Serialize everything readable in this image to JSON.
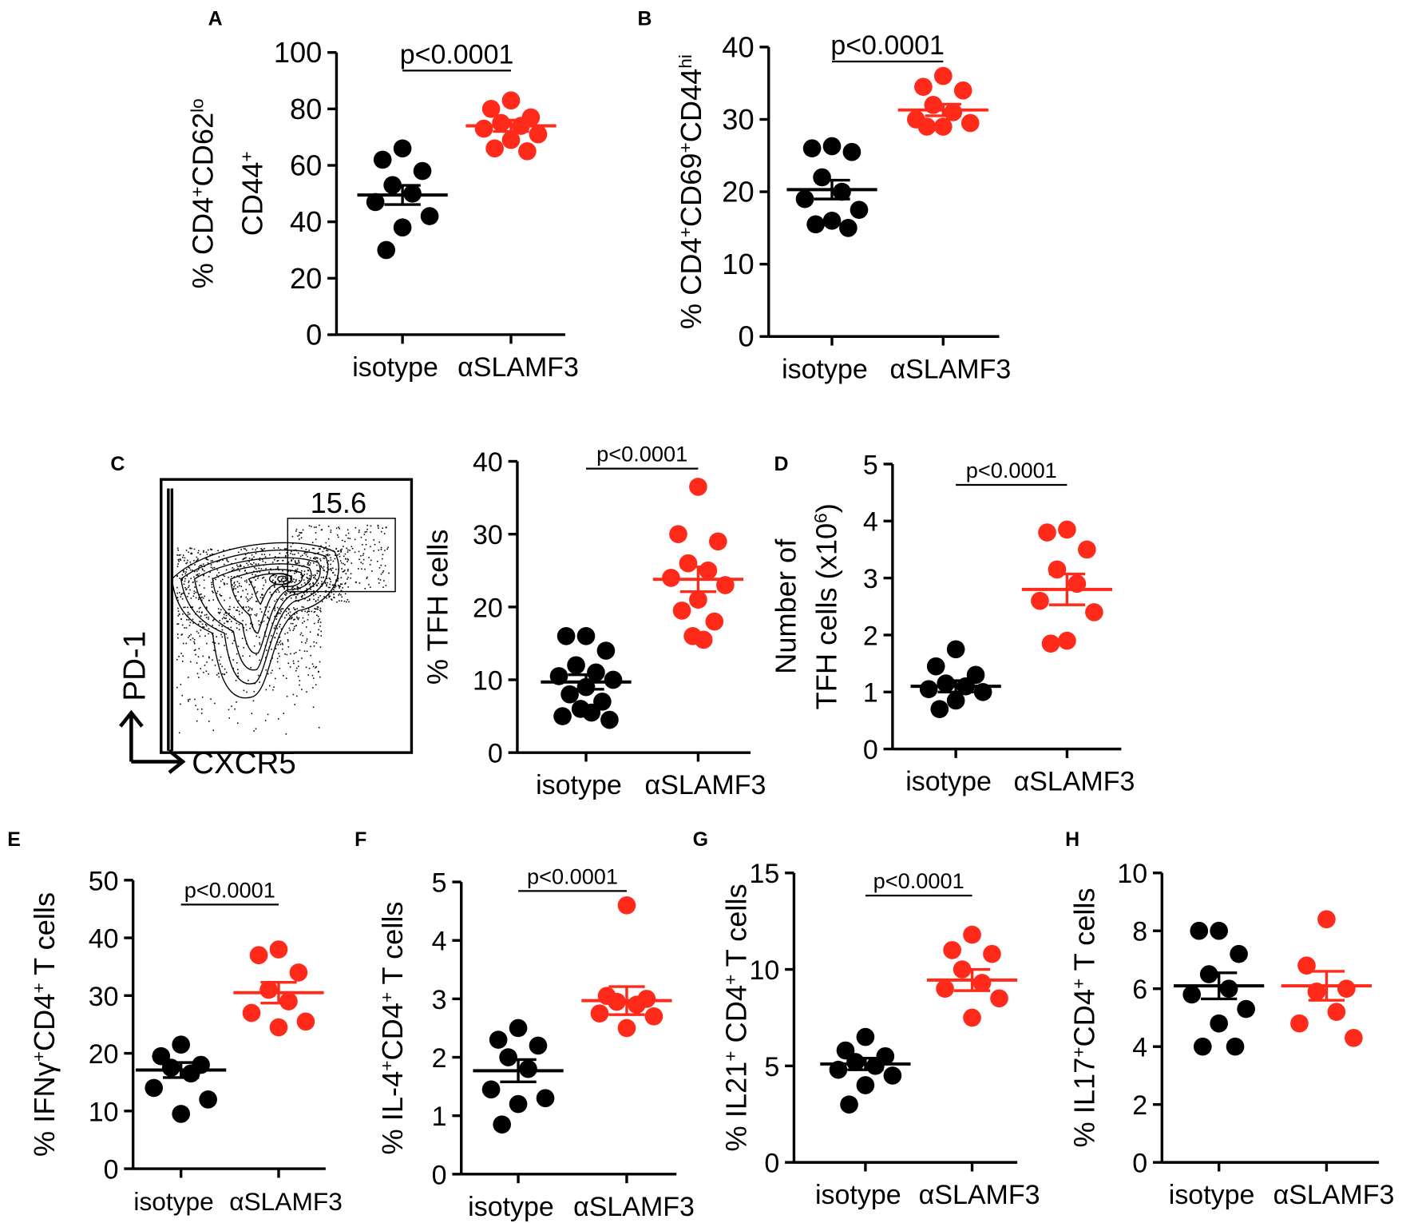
{
  "colors": {
    "isotype": "#000000",
    "treated": "#ff2a1a"
  },
  "flow_plot": {
    "panel_letter": "C",
    "gate_value": "15.6",
    "y_marker": "PD-1",
    "x_marker": "CXCR5"
  },
  "chart_data": [
    {
      "id": "A",
      "type": "scatter",
      "panel_letter": "A",
      "categories": [
        "isotype",
        "αSLAMF3"
      ],
      "ylabel_lines": [
        [
          [
            "% CD4",
            0
          ],
          [
            "+",
            1
          ],
          [
            "CD62",
            0
          ],
          [
            "lo",
            1
          ]
        ],
        [
          [
            "CD44",
            0
          ],
          [
            "+",
            1
          ]
        ]
      ],
      "ylim": [
        0,
        100
      ],
      "yticks": [
        "0",
        "20",
        "40",
        "60",
        "80",
        "100"
      ],
      "annotation": "p<0.0001",
      "series": [
        {
          "name": "isotype",
          "values": [
            66,
            62,
            58,
            53,
            50,
            47,
            42,
            38,
            30
          ],
          "mean": 49.5,
          "sem": 3.4
        },
        {
          "name": "αSLAMF3",
          "values": [
            83,
            80,
            77,
            75,
            74,
            73,
            71,
            69,
            66,
            65
          ],
          "mean": 74,
          "sem": 2
        }
      ]
    },
    {
      "id": "B",
      "type": "scatter",
      "panel_letter": "B",
      "categories": [
        "isotype",
        "αSLAMF3"
      ],
      "ylabel_lines": [
        [
          [
            "% CD4",
            0
          ],
          [
            "+",
            1
          ],
          [
            "CD69",
            0
          ],
          [
            "+",
            1
          ],
          [
            "CD44",
            0
          ],
          [
            "hi",
            1
          ]
        ]
      ],
      "ylim": [
        0,
        40
      ],
      "yticks": [
        "0",
        "10",
        "20",
        "30",
        "40"
      ],
      "annotation": "p<0.0001",
      "series": [
        {
          "name": "isotype",
          "values": [
            26.3,
            26,
            25.5,
            22,
            20,
            19,
            17.5,
            16,
            15.5,
            15
          ],
          "mean": 20.3,
          "sem": 1.3
        },
        {
          "name": "αSLAMF3",
          "values": [
            36,
            34.5,
            34,
            32,
            31,
            30,
            29.5,
            29,
            29
          ],
          "mean": 31.3,
          "sem": 0.8
        }
      ]
    },
    {
      "id": "C",
      "type": "scatter",
      "panel_letter": "",
      "categories": [
        "isotype",
        "αSLAMF3"
      ],
      "ylabel_lines": [
        [
          [
            "% TFH cells",
            0
          ]
        ]
      ],
      "ylim": [
        0,
        40
      ],
      "yticks": [
        "0",
        "10",
        "20",
        "30",
        "40"
      ],
      "annotation": "p<0.0001",
      "series": [
        {
          "name": "isotype",
          "values": [
            16,
            16,
            14,
            12,
            11,
            10.5,
            10,
            9,
            8,
            7,
            6,
            5.5,
            5,
            4.5
          ],
          "mean": 9.7,
          "sem": 1
        },
        {
          "name": "αSLAMF3",
          "values": [
            36.5,
            30,
            29,
            26,
            25,
            24,
            23,
            21,
            19.5,
            18,
            16,
            15.5
          ],
          "mean": 23.8,
          "sem": 1.7
        }
      ]
    },
    {
      "id": "D",
      "type": "scatter",
      "panel_letter": "D",
      "categories": [
        "isotype",
        "αSLAMF3"
      ],
      "ylabel_lines": [
        [
          [
            "Number of",
            0
          ]
        ],
        [
          [
            "TFH cells (x10",
            0
          ],
          [
            "6",
            1
          ],
          [
            ")",
            0
          ]
        ]
      ],
      "ylim": [
        0,
        5
      ],
      "yticks": [
        "0",
        "1",
        "2",
        "3",
        "4",
        "5"
      ],
      "annotation": "p<0.0001",
      "series": [
        {
          "name": "isotype",
          "values": [
            1.75,
            1.45,
            1.3,
            1.15,
            1.1,
            1.05,
            1.0,
            0.85,
            0.7
          ],
          "mean": 1.1,
          "sem": 0.1
        },
        {
          "name": "αSLAMF3",
          "values": [
            3.85,
            3.8,
            3.5,
            3.15,
            2.9,
            2.6,
            2.4,
            1.9,
            1.85
          ],
          "mean": 2.8,
          "sem": 0.27
        }
      ]
    },
    {
      "id": "E",
      "type": "scatter",
      "panel_letter": "E",
      "categories": [
        "isotype",
        "αSLAMF3"
      ],
      "ylabel_lines": [
        [
          [
            "% IFNγ",
            0
          ],
          [
            "+",
            1
          ],
          [
            "CD4",
            0
          ],
          [
            "+",
            1
          ],
          [
            " T cells",
            0
          ]
        ]
      ],
      "ylim": [
        0,
        50
      ],
      "yticks": [
        "0",
        "10",
        "20",
        "30",
        "40",
        "50"
      ],
      "annotation": "p<0.0001",
      "series": [
        {
          "name": "isotype",
          "values": [
            21.5,
            19.5,
            18,
            17.5,
            16.5,
            14,
            12,
            9.5
          ],
          "mean": 17.1,
          "sem": 1.3
        },
        {
          "name": "αSLAMF3",
          "values": [
            38,
            37,
            34,
            31,
            29,
            27,
            25.5,
            24.5
          ],
          "mean": 30.5,
          "sem": 1.8
        }
      ]
    },
    {
      "id": "F",
      "type": "scatter",
      "panel_letter": "F",
      "categories": [
        "isotype",
        "αSLAMF3"
      ],
      "ylabel_lines": [
        [
          [
            "% IL-4",
            0
          ],
          [
            "+",
            1
          ],
          [
            "CD4",
            0
          ],
          [
            "+",
            1
          ],
          [
            " T cells",
            0
          ]
        ]
      ],
      "ylim": [
        0,
        5
      ],
      "yticks": [
        "0",
        "1",
        "2",
        "3",
        "4",
        "5"
      ],
      "annotation": "p<0.0001",
      "series": [
        {
          "name": "isotype",
          "values": [
            2.5,
            2.3,
            2.2,
            2.0,
            1.8,
            1.45,
            1.3,
            1.2,
            0.85
          ],
          "mean": 1.77,
          "sem": 0.19
        },
        {
          "name": "αSLAMF3",
          "values": [
            4.6,
            3.05,
            3.0,
            2.95,
            2.9,
            2.75,
            2.7,
            2.5
          ],
          "mean": 2.97,
          "sem": 0.24
        }
      ]
    },
    {
      "id": "G",
      "type": "scatter",
      "panel_letter": "G",
      "categories": [
        "isotype",
        "αSLAMF3"
      ],
      "ylabel_lines": [
        [
          [
            "% IL21",
            0
          ],
          [
            "+",
            1
          ],
          [
            " CD4",
            0
          ],
          [
            "+",
            1
          ],
          [
            " T cells",
            0
          ]
        ]
      ],
      "ylim": [
        0,
        15
      ],
      "yticks": [
        "0",
        "5",
        "10",
        "15"
      ],
      "annotation": "p<0.0001",
      "series": [
        {
          "name": "isotype",
          "values": [
            6.5,
            5.8,
            5.5,
            5.2,
            5.0,
            4.8,
            4.5,
            4.0,
            3.0
          ],
          "mean": 5.1,
          "sem": 0.3
        },
        {
          "name": "αSLAMF3",
          "values": [
            11.8,
            11,
            10.8,
            10,
            9.3,
            9.0,
            8.5,
            7.5
          ],
          "mean": 9.45,
          "sem": 0.55
        }
      ]
    },
    {
      "id": "H",
      "type": "scatter",
      "panel_letter": "H",
      "categories": [
        "isotype",
        "αSLAMF3"
      ],
      "ylabel_lines": [
        [
          [
            "% IL17",
            0
          ],
          [
            "+",
            1
          ],
          [
            "CD4",
            0
          ],
          [
            "+",
            1
          ],
          [
            " T cells",
            0
          ]
        ]
      ],
      "ylim": [
        0,
        10
      ],
      "yticks": [
        "0",
        "2",
        "4",
        "6",
        "8",
        "10"
      ],
      "annotation": "",
      "series": [
        {
          "name": "isotype",
          "values": [
            8,
            8,
            7.2,
            6.5,
            6.0,
            5.8,
            5.3,
            4.8,
            4,
            4
          ],
          "mean": 6.1,
          "sem": 0.45
        },
        {
          "name": "αSLAMF3",
          "values": [
            8.4,
            6.8,
            6.0,
            5.9,
            5.2,
            4.8,
            4.3
          ],
          "mean": 6.1,
          "sem": 0.5
        }
      ]
    }
  ]
}
